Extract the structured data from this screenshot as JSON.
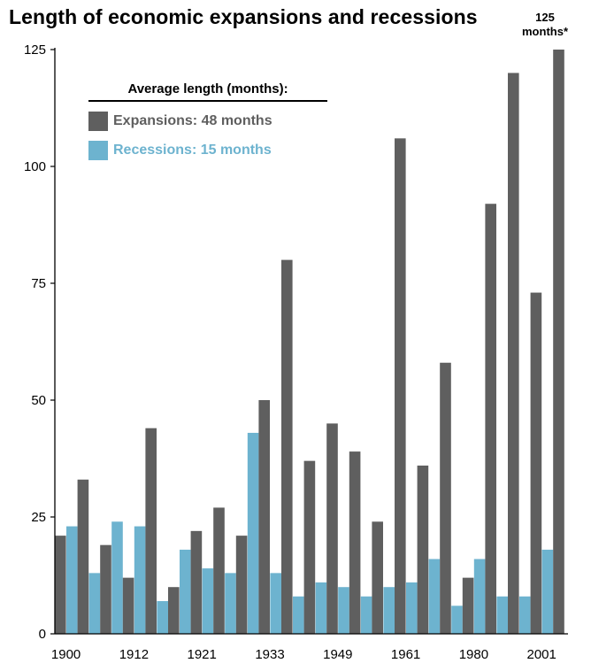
{
  "chart_data": {
    "type": "bar",
    "title": "Length of economic expansions and recessions",
    "xlabel": "",
    "ylabel": "",
    "ylim": [
      0,
      125
    ],
    "yticks": [
      0,
      25,
      50,
      75,
      100,
      125
    ],
    "grid": false,
    "x_tick_labels": [
      {
        "label": "1900",
        "index": 0
      },
      {
        "label": "1912",
        "index": 3
      },
      {
        "label": "1921",
        "index": 6
      },
      {
        "label": "1933",
        "index": 9
      },
      {
        "label": "1949",
        "index": 12
      },
      {
        "label": "1961",
        "index": 15
      },
      {
        "label": "1980",
        "index": 18
      },
      {
        "label": "2001",
        "index": 21
      }
    ],
    "series": [
      {
        "name": "Expansions",
        "color": "#5f5f5f",
        "values": [
          21,
          33,
          19,
          12,
          44,
          10,
          22,
          27,
          21,
          50,
          80,
          37,
          45,
          39,
          24,
          106,
          36,
          58,
          12,
          92,
          120,
          73,
          125
        ]
      },
      {
        "name": "Recessions",
        "color": "#6db3cf",
        "values": [
          23,
          13,
          24,
          23,
          7,
          18,
          14,
          13,
          43,
          13,
          8,
          11,
          10,
          8,
          10,
          11,
          16,
          6,
          16,
          8,
          8,
          18,
          null
        ]
      }
    ],
    "legend": {
      "heading": "Average length (months):",
      "placement": "top-left",
      "entries": [
        {
          "label": "Expansions:  48 months",
          "color": "#5f5f5f"
        },
        {
          "label": "Recessions:  15 months",
          "color": "#6db3cf"
        }
      ]
    },
    "annotation": {
      "line1": "125",
      "line2": "months*"
    }
  }
}
